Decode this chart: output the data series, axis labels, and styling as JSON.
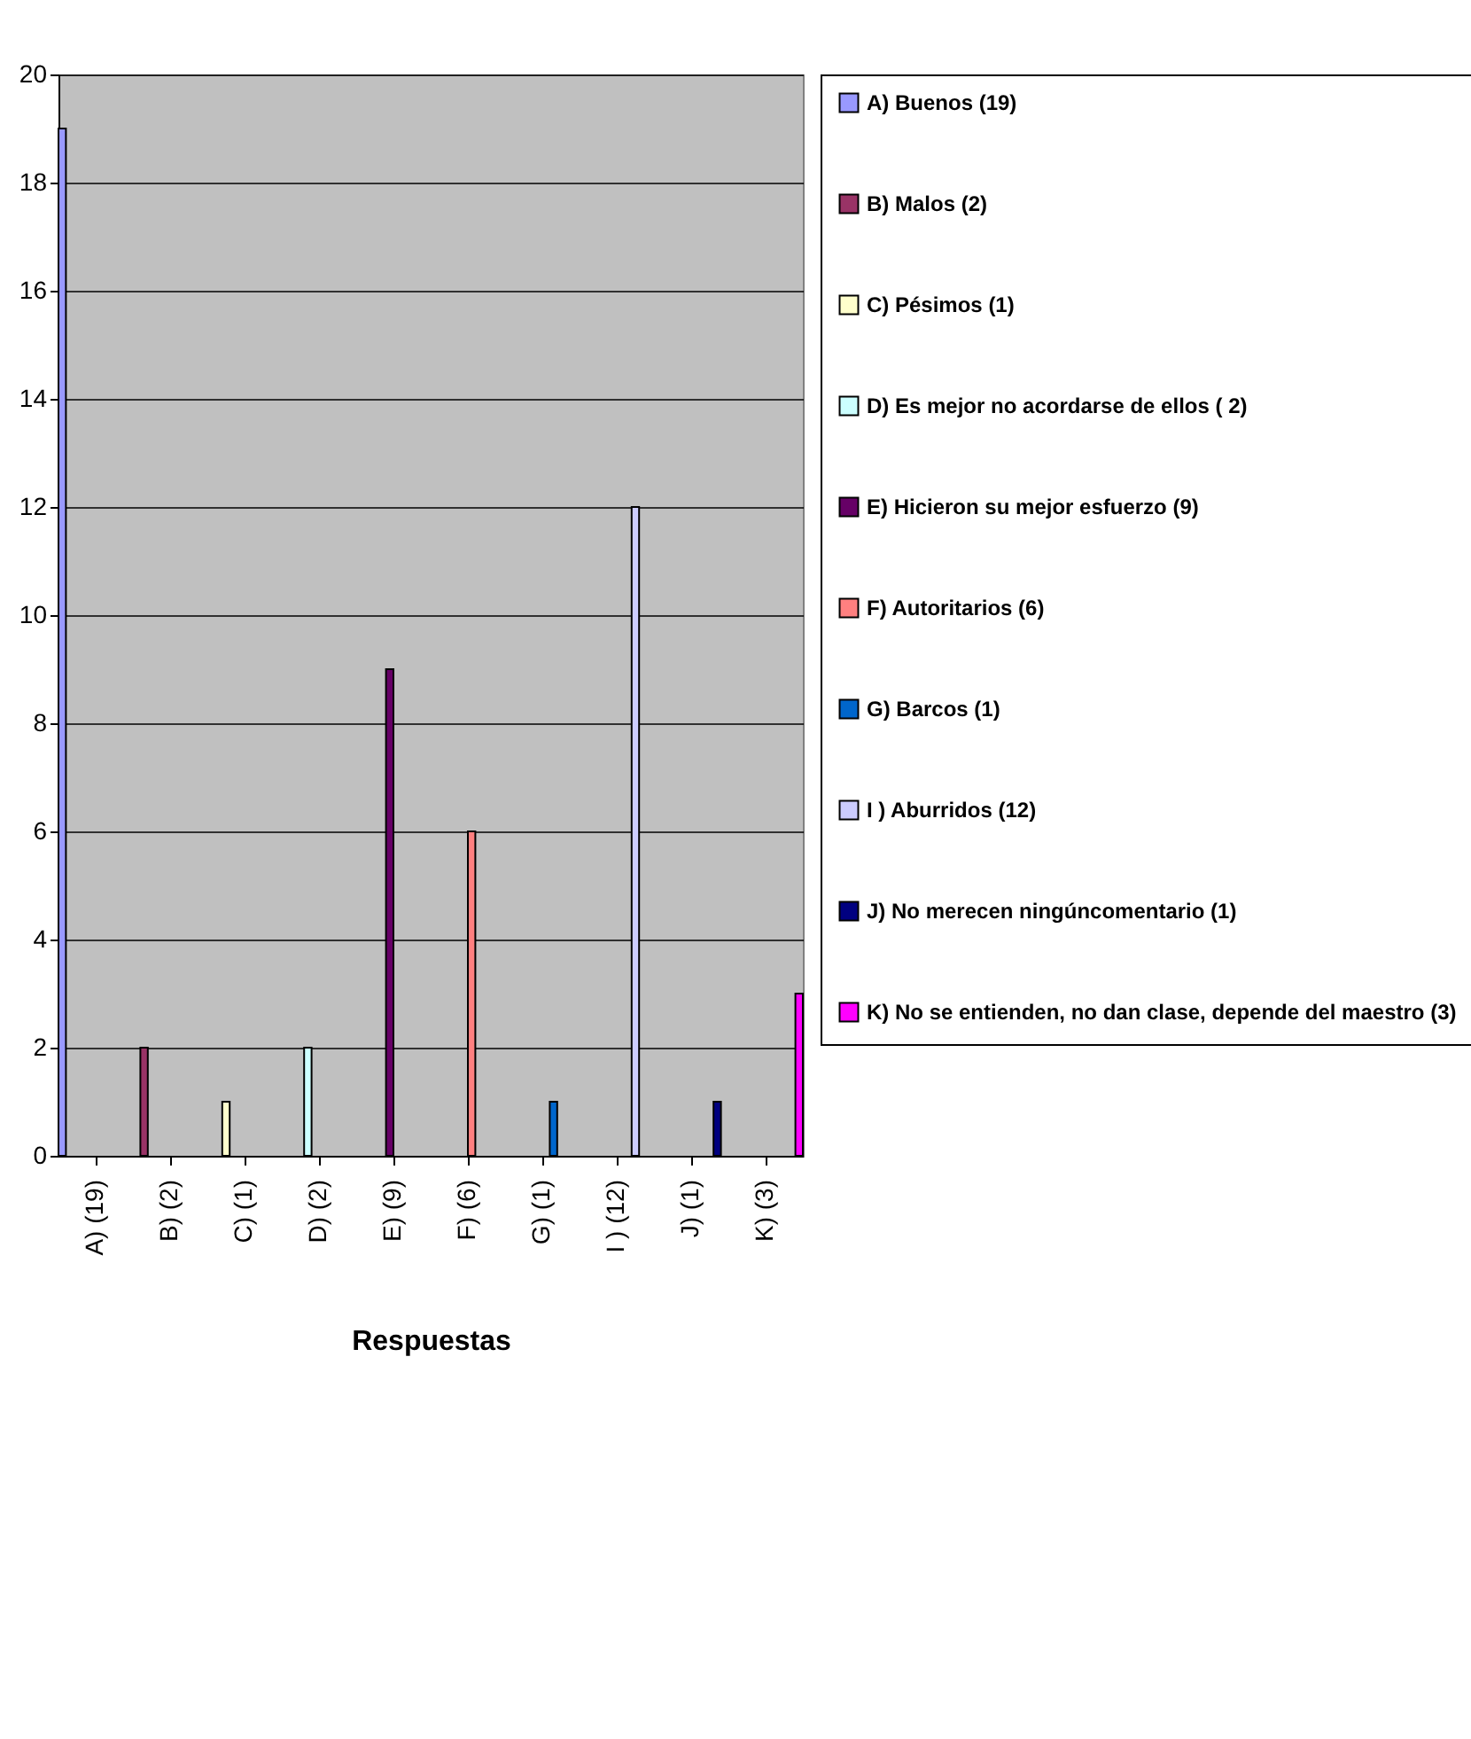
{
  "chart_data": {
    "type": "bar",
    "xlabel": "Respuestas",
    "categories": [
      "A) (19)",
      "B) (2)",
      "C) (1)",
      "D) (2)",
      "E) (9)",
      "F) (6)",
      "G) (1)",
      "I ) (12)",
      "J) (1)",
      "K) (3)"
    ],
    "series": [
      {
        "name": "A) Buenos (19)",
        "color": "#9999ff",
        "values": [
          19,
          null,
          null,
          null,
          null,
          null,
          null,
          null,
          null,
          null
        ]
      },
      {
        "name": "B) Malos (2)",
        "color": "#993366",
        "values": [
          null,
          2,
          null,
          null,
          null,
          null,
          null,
          null,
          null,
          null
        ]
      },
      {
        "name": "C) Pésimos (1)",
        "color": "#ffffcc",
        "values": [
          null,
          null,
          1,
          null,
          null,
          null,
          null,
          null,
          null,
          null
        ]
      },
      {
        "name": "D) Es mejor no acordarse de ellos ( 2)",
        "color": "#ccffff",
        "values": [
          null,
          null,
          null,
          2,
          null,
          null,
          null,
          null,
          null,
          null
        ]
      },
      {
        "name": "E) Hicieron su mejor esfuerzo (9)",
        "color": "#660066",
        "values": [
          null,
          null,
          null,
          null,
          9,
          null,
          null,
          null,
          null,
          null
        ]
      },
      {
        "name": "F) Autoritarios (6)",
        "color": "#ff8080",
        "values": [
          null,
          null,
          null,
          null,
          null,
          6,
          null,
          null,
          null,
          null
        ]
      },
      {
        "name": "G) Barcos (1)",
        "color": "#0066cc",
        "values": [
          null,
          null,
          null,
          null,
          null,
          null,
          1,
          null,
          null,
          null
        ]
      },
      {
        "name": "I ) Aburridos (12)",
        "color": "#ccccff",
        "values": [
          null,
          null,
          null,
          null,
          null,
          null,
          null,
          12,
          null,
          null
        ]
      },
      {
        "name": "J) No merecen ningúncomentario (1)",
        "color": "#000080",
        "values": [
          null,
          null,
          null,
          null,
          null,
          null,
          null,
          null,
          1,
          null
        ]
      },
      {
        "name": "K) No se entienden, no dan clase, depende del maestro (3)",
        "color": "#ff00ff",
        "values": [
          null,
          null,
          null,
          null,
          null,
          null,
          null,
          null,
          null,
          3
        ]
      }
    ],
    "ylim": [
      0,
      20
    ],
    "yticks": [
      0,
      2,
      4,
      6,
      8,
      10,
      12,
      14,
      16,
      18,
      20
    ],
    "grid": "y",
    "legend": "right"
  }
}
